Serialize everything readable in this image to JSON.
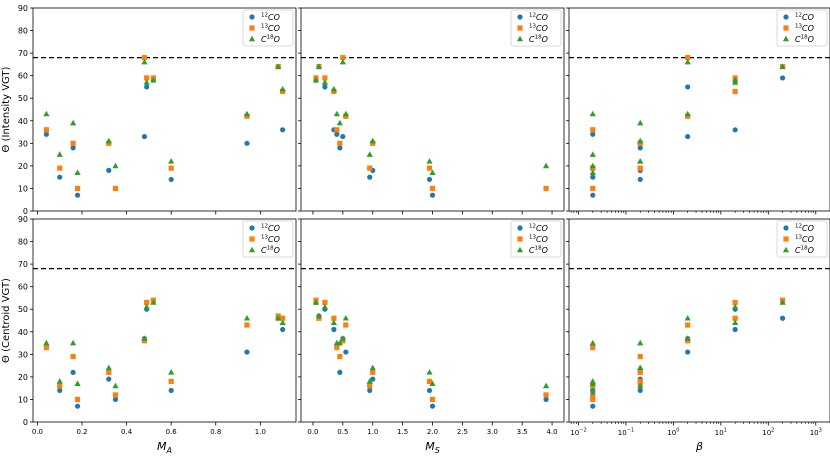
{
  "colors": {
    "s12": "#1f77b4",
    "s13": "#ff7f0e",
    "s18": "#2ca02c",
    "threshold": "#000000"
  },
  "legend": {
    "entries": [
      {
        "key": "s12",
        "sup": "12",
        "base": "CO",
        "marker": "circle"
      },
      {
        "key": "s13",
        "sup": "13",
        "base": "CO",
        "marker": "square"
      },
      {
        "key": "s18",
        "pre": "C",
        "sup": "18",
        "base": "O",
        "marker": "triangle"
      }
    ]
  },
  "chart_data": {
    "type": "scatter",
    "rows": [
      {
        "ylabel": "Θ (Intensity VGT)",
        "ylim": [
          0,
          90
        ],
        "yticks": [
          "0",
          "10",
          "20",
          "30",
          "40",
          "50",
          "60",
          "70",
          "80",
          "90"
        ]
      },
      {
        "ylabel": "Θ (Centroid VGT)",
        "ylim": [
          0,
          90
        ],
        "yticks": [
          "0",
          "10",
          "20",
          "30",
          "40",
          "50",
          "60",
          "70",
          "80",
          "90"
        ]
      }
    ],
    "threshold": 68,
    "columns": [
      {
        "xlabel_base": "M",
        "xlabel_sub": "A",
        "scale": "linear",
        "xlim": [
          -0.02,
          1.16
        ],
        "xticks": [
          0.0,
          0.2,
          0.4,
          0.6,
          0.8,
          1.0
        ],
        "xticklabels": [
          "0.0",
          "0.2",
          "0.4",
          "0.6",
          "0.8",
          "1.0"
        ],
        "x": [
          0.04,
          0.1,
          0.16,
          0.18,
          0.32,
          0.35,
          0.48,
          0.49,
          0.52,
          0.6,
          0.94,
          1.08,
          1.1
        ],
        "intensity": {
          "s12": [
            34,
            15,
            28,
            7,
            18,
            10,
            33,
            55,
            58,
            14,
            30,
            64,
            36
          ],
          "s13": [
            36,
            19,
            30,
            10,
            30,
            10,
            68,
            59,
            59,
            19,
            42,
            64,
            53
          ],
          "s18": [
            43,
            25,
            39,
            17,
            31,
            20,
            66,
            57,
            58,
            22,
            43,
            64,
            54
          ]
        },
        "centroid": {
          "s12": [
            34,
            14,
            22,
            7,
            19,
            10,
            37,
            50,
            54,
            14,
            31,
            46,
            41
          ],
          "s13": [
            33,
            16,
            29,
            10,
            22,
            12,
            36,
            53,
            54,
            18,
            43,
            47,
            46
          ],
          "s18": [
            35,
            18,
            35,
            17,
            24,
            16,
            37,
            51,
            53,
            22,
            46,
            46,
            44
          ]
        }
      },
      {
        "xlabel_base": "M",
        "xlabel_sub": "S",
        "scale": "linear",
        "xlim": [
          -0.2,
          4.2
        ],
        "xticks": [
          0.0,
          0.5,
          1.0,
          1.5,
          2.0,
          2.5,
          3.0,
          3.5,
          4.0
        ],
        "xticklabels": [
          "0.0",
          "0.5",
          "1.0",
          "1.5",
          "2.0",
          "2.5",
          "3.0",
          "3.5",
          "4.0"
        ],
        "x": [
          0.05,
          0.1,
          0.2,
          0.35,
          0.4,
          0.45,
          0.5,
          0.55,
          0.95,
          1.0,
          1.95,
          2.0,
          3.9
        ],
        "intensity": {
          "s12": [
            58,
            64,
            55,
            36,
            34,
            28,
            33,
            42,
            15,
            18,
            14,
            7,
            10
          ],
          "s13": [
            59,
            64,
            59,
            53,
            36,
            30,
            68,
            42,
            19,
            30,
            19,
            10,
            10
          ],
          "s18": [
            58,
            64,
            57,
            54,
            43,
            39,
            66,
            43,
            25,
            31,
            22,
            17,
            20
          ]
        },
        "centroid": {
          "s12": [
            53,
            47,
            50,
            41,
            34,
            22,
            37,
            31,
            14,
            19,
            14,
            7,
            10
          ],
          "s13": [
            54,
            46,
            53,
            46,
            33,
            29,
            36,
            43,
            16,
            22,
            18,
            10,
            12
          ],
          "s18": [
            53,
            47,
            51,
            44,
            35,
            35,
            37,
            46,
            18,
            24,
            22,
            17,
            16
          ]
        }
      },
      {
        "xlabel_base": "β",
        "xlabel_sub": "",
        "scale": "log",
        "xlim_log10": [
          -2.2,
          3.3
        ],
        "xticks_exp": [
          -2,
          -1,
          0,
          1,
          2,
          3
        ],
        "x": [
          0.02,
          0.02,
          0.02,
          0.02,
          0.2,
          0.2,
          0.2,
          0.2,
          2,
          2,
          20,
          20,
          200
        ],
        "intensity": {
          "s12": [
            34,
            15,
            7,
            19,
            28,
            14,
            18,
            30,
            33,
            55,
            36,
            58,
            59
          ],
          "s13": [
            36,
            19,
            10,
            19,
            30,
            19,
            19,
            30,
            68,
            42,
            53,
            59,
            64
          ],
          "s18": [
            43,
            25,
            17,
            20,
            39,
            22,
            22,
            31,
            66,
            43,
            57,
            58,
            64
          ]
        },
        "centroid": {
          "s12": [
            34,
            14,
            7,
            12,
            22,
            14,
            19,
            18,
            31,
            37,
            41,
            50,
            46
          ],
          "s13": [
            33,
            16,
            10,
            11,
            29,
            18,
            22,
            17,
            43,
            36,
            46,
            53,
            54
          ],
          "s18": [
            35,
            18,
            17,
            14,
            35,
            24,
            24,
            16,
            46,
            37,
            44,
            51,
            53
          ]
        }
      }
    ]
  }
}
